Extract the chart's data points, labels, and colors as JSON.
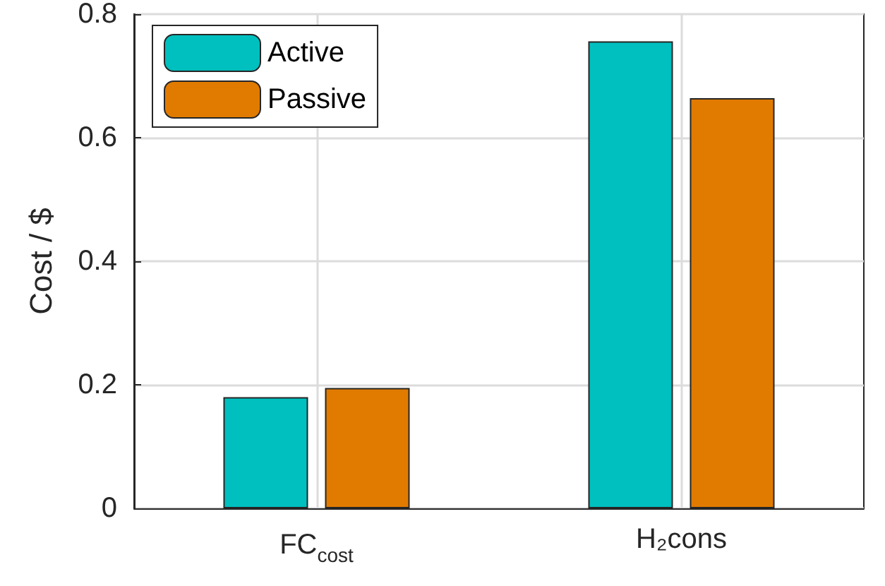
{
  "chart_data": {
    "type": "bar",
    "ylabel": "Cost / $",
    "categories": [
      "FC$_{cost}$",
      "H₂cons"
    ],
    "series": [
      {
        "name": "Active",
        "color": "#00bfbf",
        "values": [
          0.18,
          0.756
        ]
      },
      {
        "name": "Passive",
        "color": "#e07b00",
        "values": [
          0.195,
          0.664
        ]
      }
    ],
    "ylim": [
      0,
      0.8
    ],
    "yticks": [
      0,
      0.2,
      0.4,
      0.6,
      0.8
    ],
    "grid": true,
    "legend": "top left"
  }
}
